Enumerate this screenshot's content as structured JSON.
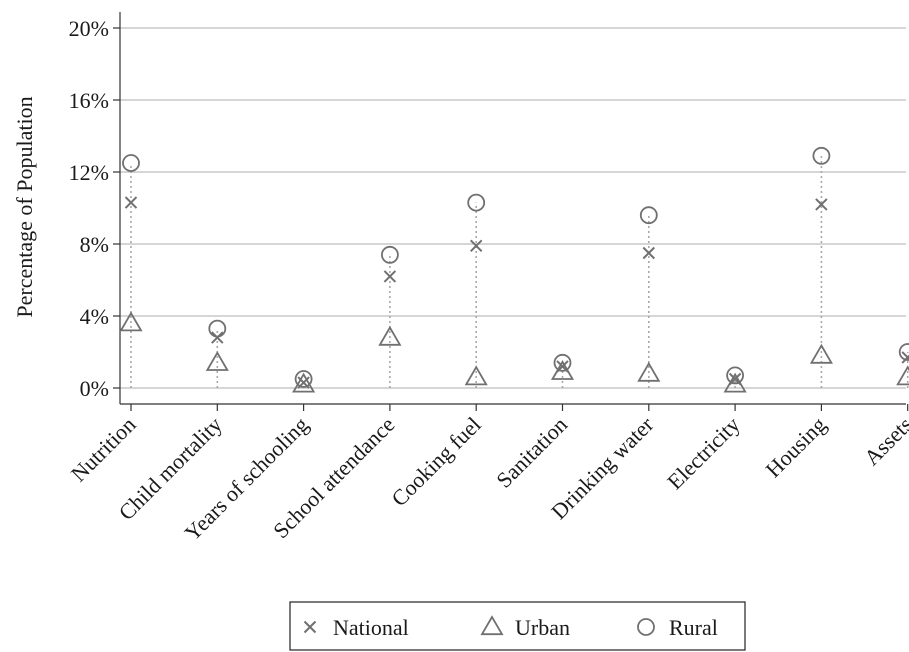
{
  "chart_data": {
    "type": "scatter",
    "title": "",
    "xlabel": "",
    "ylabel": "Percentage of Population",
    "ylim": [
      0,
      20
    ],
    "yticks": [
      "0%",
      "4%",
      "8%",
      "12%",
      "16%",
      "20%"
    ],
    "grid": true,
    "legend_position": "bottom",
    "categories": [
      "Nutrition",
      "Child mortality",
      "Years of schooling",
      "School attendance",
      "Cooking fuel",
      "Sanitation",
      "Drinking water",
      "Electricity",
      "Housing",
      "Assets"
    ],
    "series": [
      {
        "name": "National",
        "marker": "x",
        "values": [
          10.3,
          2.8,
          0.3,
          6.2,
          7.9,
          1.2,
          7.5,
          0.5,
          10.2,
          1.7
        ]
      },
      {
        "name": "Urban",
        "marker": "triangle",
        "values": [
          3.6,
          1.4,
          0.2,
          2.8,
          0.6,
          0.9,
          0.8,
          0.2,
          1.8,
          0.6
        ]
      },
      {
        "name": "Rural",
        "marker": "circle",
        "values": [
          12.5,
          3.3,
          0.5,
          7.4,
          10.3,
          1.4,
          9.6,
          0.7,
          12.9,
          2.0
        ]
      }
    ],
    "colors": {
      "marker": "#707070",
      "grid": "#bdbdbd",
      "dropline": "#a8a8a8",
      "axis": "#333333"
    }
  }
}
